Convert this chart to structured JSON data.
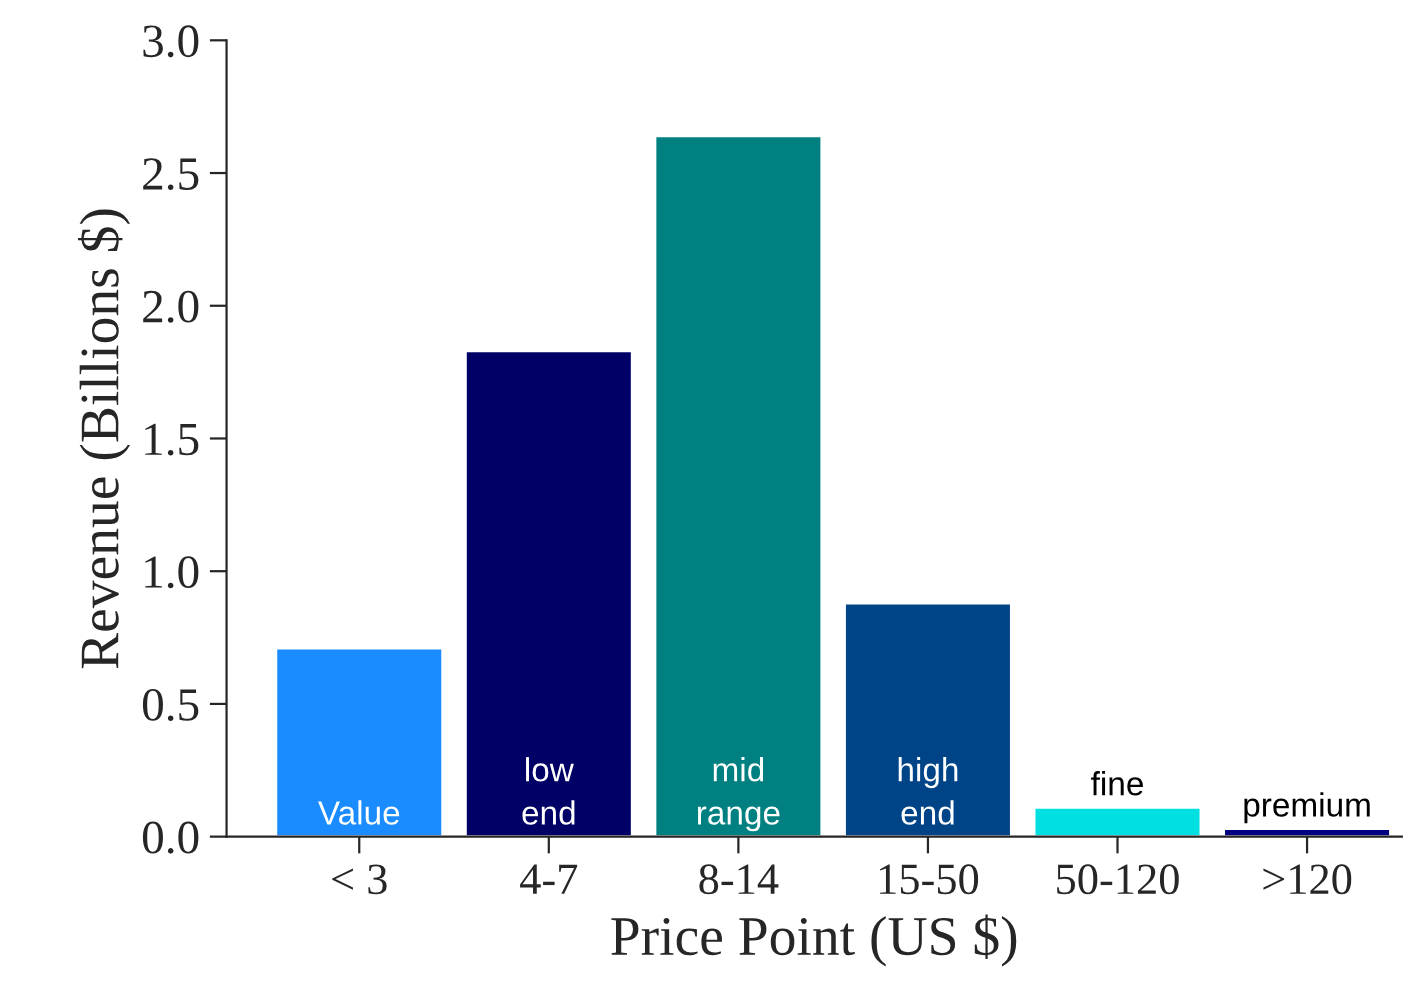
{
  "chart_data": {
    "type": "bar",
    "xlabel": "Price Point (US $)",
    "ylabel": "Revenue (Billions $)",
    "categories": [
      "< 3",
      "4-7",
      "8-14",
      "15-50",
      "50-120",
      ">120"
    ],
    "values": [
      0.71,
      1.83,
      2.64,
      0.88,
      0.11,
      0.03
    ],
    "colors": [
      "#1a8cff",
      "#000066",
      "#008080",
      "#004488",
      "#00e0e0",
      "#000080"
    ],
    "ylim": [
      0,
      3.0
    ],
    "yticks": [
      {
        "value": 0,
        "label": "0.0"
      },
      {
        "value": 0.5,
        "label": "0.5"
      },
      {
        "value": 1,
        "label": "1.0"
      },
      {
        "value": 1.5,
        "label": "1.5"
      },
      {
        "value": 2,
        "label": "2.0"
      },
      {
        "value": 2.5,
        "label": "2.5"
      },
      {
        "value": 3,
        "label": "3.0"
      }
    ],
    "grid": false,
    "annotations": [
      "Value",
      "low\nend",
      "mid\nrange",
      "high\nend",
      "fine",
      "premium"
    ]
  }
}
